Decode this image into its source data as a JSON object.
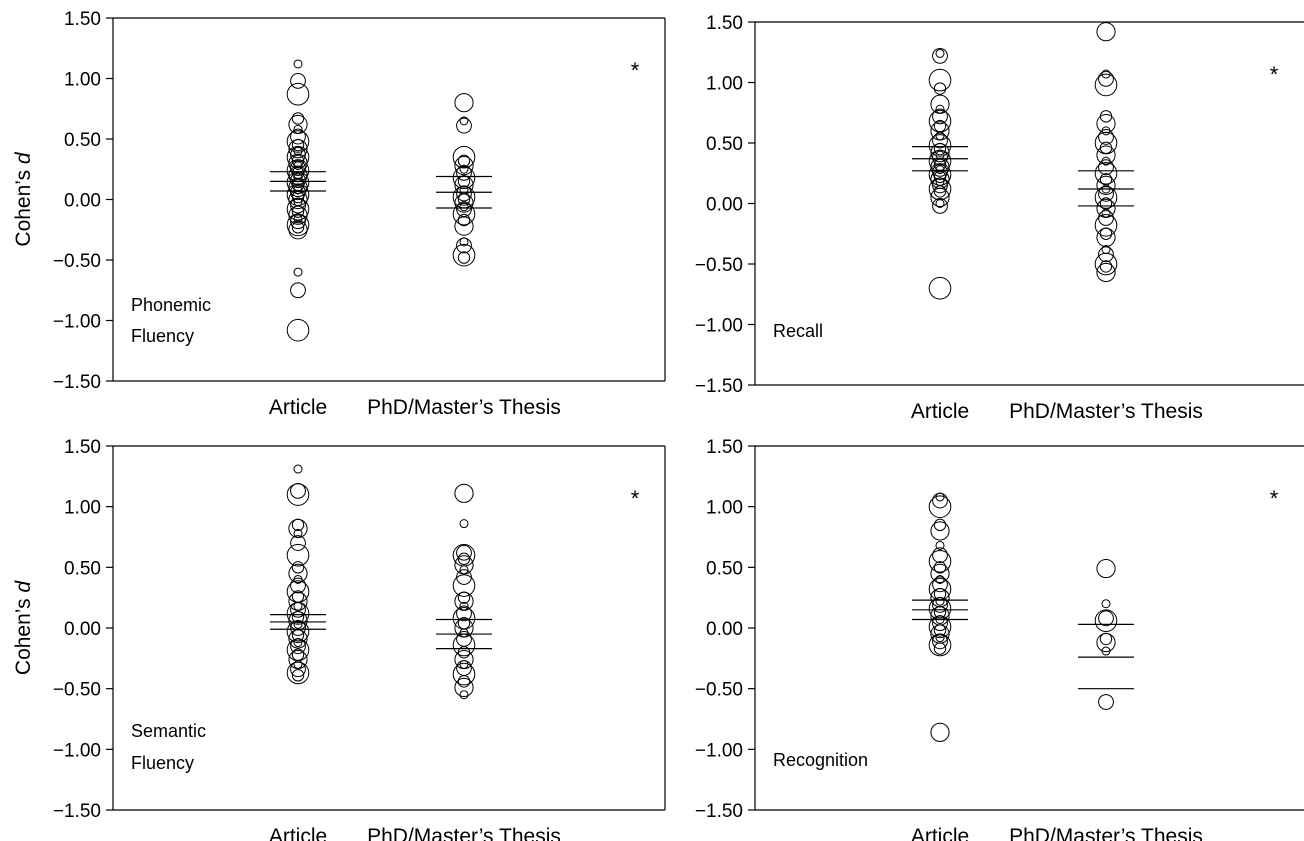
{
  "chart_data": [
    {
      "type": "scatter",
      "label_lines": [
        "Phonemic",
        "Fluency"
      ],
      "ylabel": "Cohen’s",
      "ylabel_italic": "d",
      "ylim": [
        -1.5,
        1.5
      ],
      "yticks": [
        1.5,
        1.0,
        0.5,
        0.0,
        -0.5,
        -1.0,
        -1.5
      ],
      "ytick_labels": [
        "1.50",
        "1.00",
        "0.50",
        "0.00",
        "−0.50",
        "−1.00",
        "−1.50"
      ],
      "categories": [
        "Article",
        "PhD/Master’s Thesis"
      ],
      "annotation": "*",
      "groups": [
        {
          "category": "Article",
          "ci": [
            0.07,
            0.15,
            0.23
          ],
          "points": [
            1.12,
            0.98,
            0.87,
            0.67,
            0.62,
            0.58,
            0.52,
            0.48,
            0.45,
            0.42,
            0.4,
            0.37,
            0.35,
            0.32,
            0.3,
            0.28,
            0.26,
            0.24,
            0.22,
            0.2,
            0.18,
            0.16,
            0.14,
            0.12,
            0.1,
            0.08,
            0.06,
            0.04,
            0.02,
            0.0,
            -0.02,
            -0.05,
            -0.08,
            -0.1,
            -0.13,
            -0.16,
            -0.18,
            -0.21,
            -0.23,
            -0.25,
            -0.6,
            -0.75,
            -1.08
          ]
        },
        {
          "category": "PhD/Master’s Thesis",
          "ci": [
            -0.07,
            0.06,
            0.19
          ],
          "points": [
            0.8,
            0.65,
            0.61,
            0.35,
            0.32,
            0.28,
            0.25,
            0.22,
            0.18,
            0.15,
            0.12,
            0.08,
            0.05,
            0.02,
            0.0,
            -0.03,
            -0.06,
            -0.08,
            -0.12,
            -0.17,
            -0.22,
            -0.35,
            -0.38,
            -0.46,
            -0.48
          ]
        }
      ]
    },
    {
      "type": "scatter",
      "label_lines": [
        "Recall"
      ],
      "ylabel": "",
      "ylabel_italic": "",
      "ylim": [
        -1.5,
        1.5
      ],
      "yticks": [
        1.5,
        1.0,
        0.5,
        0.0,
        -0.5,
        -1.0,
        -1.5
      ],
      "ytick_labels": [
        "1.50",
        "1.00",
        "0.50",
        "0.00",
        "−0.50",
        "−1.00",
        "−1.50"
      ],
      "categories": [
        "Article",
        "PhD/Master’s Thesis"
      ],
      "annotation": "*",
      "groups": [
        {
          "category": "Article",
          "ci": [
            0.27,
            0.37,
            0.47
          ],
          "points": [
            1.24,
            1.22,
            1.02,
            0.95,
            0.82,
            0.78,
            0.72,
            0.68,
            0.64,
            0.6,
            0.56,
            0.52,
            0.48,
            0.45,
            0.42,
            0.4,
            0.38,
            0.35,
            0.32,
            0.3,
            0.28,
            0.26,
            0.24,
            0.22,
            0.2,
            0.18,
            0.15,
            0.12,
            0.1,
            0.05,
            0.0,
            -0.02,
            -0.7
          ]
        },
        {
          "category": "PhD/Master’s Thesis",
          "ci": [
            -0.02,
            0.12,
            0.27
          ],
          "points": [
            1.42,
            1.07,
            1.03,
            0.98,
            0.72,
            0.66,
            0.6,
            0.55,
            0.5,
            0.46,
            0.4,
            0.35,
            0.3,
            0.25,
            0.2,
            0.15,
            0.12,
            0.08,
            0.05,
            0.0,
            -0.04,
            -0.08,
            -0.12,
            -0.18,
            -0.25,
            -0.28,
            -0.38,
            -0.42,
            -0.5,
            -0.52,
            -0.57
          ]
        }
      ]
    },
    {
      "type": "scatter",
      "label_lines": [
        "Semantic",
        "Fluency"
      ],
      "ylabel": "Cohen’s",
      "ylabel_italic": "d",
      "ylim": [
        -1.5,
        1.5
      ],
      "yticks": [
        1.5,
        1.0,
        0.5,
        0.0,
        -0.5,
        -1.0,
        -1.5
      ],
      "ytick_labels": [
        "1.50",
        "1.00",
        "0.50",
        "0.00",
        "−0.50",
        "−1.00",
        "−1.50"
      ],
      "categories": [
        "Article",
        "PhD/Master’s Thesis"
      ],
      "annotation": "*",
      "groups": [
        {
          "category": "Article",
          "ci": [
            -0.01,
            0.05,
            0.11
          ],
          "points": [
            1.31,
            1.13,
            1.1,
            0.85,
            0.82,
            0.78,
            0.7,
            0.6,
            0.5,
            0.45,
            0.4,
            0.35,
            0.3,
            0.26,
            0.22,
            0.18,
            0.15,
            0.12,
            0.09,
            0.06,
            0.03,
            0.0,
            -0.03,
            -0.06,
            -0.09,
            -0.12,
            -0.15,
            -0.18,
            -0.22,
            -0.26,
            -0.3,
            -0.34,
            -0.37,
            -0.39
          ]
        },
        {
          "category": "PhD/Master’s Thesis",
          "ci": [
            -0.17,
            -0.05,
            0.07
          ],
          "points": [
            1.11,
            0.86,
            0.62,
            0.6,
            0.57,
            0.52,
            0.48,
            0.42,
            0.35,
            0.25,
            0.22,
            0.18,
            0.12,
            0.08,
            0.04,
            0.0,
            -0.04,
            -0.09,
            -0.14,
            -0.2,
            -0.26,
            -0.3,
            -0.33,
            -0.38,
            -0.44,
            -0.49,
            -0.55
          ]
        }
      ]
    },
    {
      "type": "scatter",
      "label_lines": [
        "Recognition"
      ],
      "ylabel": "",
      "ylabel_italic": "",
      "ylim": [
        -1.5,
        1.5
      ],
      "yticks": [
        1.5,
        1.0,
        0.5,
        0.0,
        -0.5,
        -1.0,
        -1.5
      ],
      "ytick_labels": [
        "1.50",
        "1.00",
        "0.50",
        "0.00",
        "−0.50",
        "−1.00",
        "−1.50"
      ],
      "categories": [
        "Article",
        "PhD/Master’s Thesis"
      ],
      "annotation": "*",
      "groups": [
        {
          "category": "Article",
          "ci": [
            0.07,
            0.15,
            0.23
          ],
          "points": [
            1.08,
            1.05,
            1.0,
            0.85,
            0.8,
            0.68,
            0.6,
            0.55,
            0.5,
            0.45,
            0.4,
            0.36,
            0.32,
            0.28,
            0.25,
            0.22,
            0.19,
            0.16,
            0.13,
            0.1,
            0.07,
            0.04,
            0.01,
            -0.02,
            -0.05,
            -0.08,
            -0.11,
            -0.14,
            -0.17,
            -0.86
          ]
        },
        {
          "category": "PhD/Master’s Thesis",
          "ci": [
            -0.5,
            -0.24,
            0.03
          ],
          "points": [
            0.49,
            0.2,
            0.08,
            0.06,
            -0.09,
            -0.12,
            -0.19,
            -0.61
          ]
        }
      ]
    }
  ]
}
